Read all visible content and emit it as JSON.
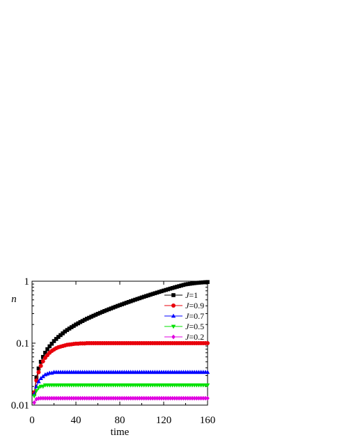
{
  "chart_data": {
    "type": "line",
    "xlabel": "time",
    "ylabel": "n",
    "xlim": [
      0,
      160
    ],
    "ylim": [
      0.01,
      1
    ],
    "yscale": "log",
    "xticks": [
      0,
      40,
      80,
      120,
      160
    ],
    "xtick_labels": [
      "0",
      "40",
      "80",
      "120",
      "160"
    ],
    "yticks": [
      0.01,
      0.1,
      1
    ],
    "ytick_labels": [
      "0.01",
      "0.1",
      "1"
    ],
    "legend_position": "top-right",
    "x": [
      2,
      4,
      6,
      8,
      10,
      12,
      14,
      16,
      18,
      20,
      22,
      24,
      26,
      28,
      30,
      32,
      34,
      36,
      38,
      40,
      42,
      44,
      46,
      48,
      50,
      52,
      54,
      56,
      58,
      60,
      62,
      64,
      66,
      68,
      70,
      72,
      74,
      76,
      78,
      80,
      82,
      84,
      86,
      88,
      90,
      92,
      94,
      96,
      98,
      100,
      102,
      104,
      106,
      108,
      110,
      112,
      114,
      116,
      118,
      120,
      122,
      124,
      126,
      128,
      130,
      132,
      134,
      136,
      138,
      140,
      142,
      144,
      146,
      148,
      150,
      152,
      154,
      156,
      158,
      160
    ],
    "series": [
      {
        "name": "J=1",
        "label_var": "J",
        "label_val": "=1",
        "color": "#000000",
        "marker": "square",
        "values": [
          0.016,
          0.028,
          0.039,
          0.05,
          0.06,
          0.07,
          0.08,
          0.089,
          0.098,
          0.108,
          0.117,
          0.126,
          0.135,
          0.144,
          0.154,
          0.163,
          0.172,
          0.181,
          0.19,
          0.2,
          0.209,
          0.219,
          0.228,
          0.238,
          0.248,
          0.257,
          0.267,
          0.277,
          0.287,
          0.298,
          0.308,
          0.319,
          0.33,
          0.341,
          0.352,
          0.363,
          0.375,
          0.387,
          0.399,
          0.411,
          0.423,
          0.436,
          0.449,
          0.462,
          0.475,
          0.489,
          0.503,
          0.517,
          0.531,
          0.546,
          0.561,
          0.576,
          0.591,
          0.607,
          0.623,
          0.639,
          0.655,
          0.672,
          0.689,
          0.706,
          0.723,
          0.741,
          0.759,
          0.777,
          0.795,
          0.813,
          0.832,
          0.851,
          0.87,
          0.889,
          0.9,
          0.91,
          0.92,
          0.93,
          0.938,
          0.946,
          0.952,
          0.958,
          0.964,
          0.97
        ]
      },
      {
        "name": "J=0.9",
        "label_var": "J",
        "label_val": "=0.9",
        "color": "#e8000b",
        "marker": "circle",
        "values": [
          0.016,
          0.025,
          0.034,
          0.043,
          0.051,
          0.058,
          0.064,
          0.07,
          0.075,
          0.079,
          0.083,
          0.086,
          0.088,
          0.09,
          0.092,
          0.094,
          0.095,
          0.096,
          0.097,
          0.098,
          0.098,
          0.099,
          0.099,
          0.099,
          0.1,
          0.1,
          0.1,
          0.1,
          0.1,
          0.1,
          0.1,
          0.1,
          0.1,
          0.1,
          0.1,
          0.1,
          0.1,
          0.1,
          0.1,
          0.1,
          0.1,
          0.1,
          0.1,
          0.1,
          0.1,
          0.1,
          0.1,
          0.1,
          0.1,
          0.1,
          0.1,
          0.1,
          0.1,
          0.1,
          0.1,
          0.1,
          0.1,
          0.1,
          0.1,
          0.1,
          0.1,
          0.1,
          0.1,
          0.1,
          0.1,
          0.1,
          0.1,
          0.1,
          0.1,
          0.1,
          0.1,
          0.1,
          0.1,
          0.1,
          0.1,
          0.1,
          0.1,
          0.1,
          0.1,
          0.1
        ]
      },
      {
        "name": "J=0.7",
        "label_var": "J",
        "label_val": "=0.7",
        "color": "#0000ff",
        "marker": "triangle-up",
        "values": [
          0.015,
          0.02,
          0.024,
          0.027,
          0.029,
          0.031,
          0.032,
          0.033,
          0.033,
          0.034,
          0.034,
          0.034,
          0.034,
          0.034,
          0.034,
          0.034,
          0.034,
          0.034,
          0.034,
          0.034,
          0.034,
          0.034,
          0.034,
          0.034,
          0.034,
          0.034,
          0.034,
          0.034,
          0.034,
          0.034,
          0.034,
          0.034,
          0.034,
          0.034,
          0.034,
          0.034,
          0.034,
          0.034,
          0.034,
          0.034,
          0.034,
          0.034,
          0.034,
          0.034,
          0.034,
          0.034,
          0.034,
          0.034,
          0.034,
          0.034,
          0.034,
          0.034,
          0.034,
          0.034,
          0.034,
          0.034,
          0.034,
          0.034,
          0.034,
          0.034,
          0.034,
          0.034,
          0.034,
          0.034,
          0.034,
          0.034,
          0.034,
          0.034,
          0.034,
          0.034,
          0.034,
          0.034,
          0.034,
          0.034,
          0.034,
          0.034,
          0.034,
          0.034,
          0.034,
          0.034
        ]
      },
      {
        "name": "J=0.5",
        "label_var": "J",
        "label_val": "=0.5",
        "color": "#00e000",
        "marker": "triangle-down",
        "values": [
          0.014,
          0.017,
          0.019,
          0.02,
          0.02,
          0.021,
          0.021,
          0.021,
          0.021,
          0.021,
          0.021,
          0.021,
          0.021,
          0.021,
          0.021,
          0.021,
          0.021,
          0.021,
          0.021,
          0.021,
          0.021,
          0.021,
          0.021,
          0.021,
          0.021,
          0.021,
          0.021,
          0.021,
          0.021,
          0.021,
          0.021,
          0.021,
          0.021,
          0.021,
          0.021,
          0.021,
          0.021,
          0.021,
          0.021,
          0.021,
          0.021,
          0.021,
          0.021,
          0.021,
          0.021,
          0.021,
          0.021,
          0.021,
          0.021,
          0.021,
          0.021,
          0.021,
          0.021,
          0.021,
          0.021,
          0.021,
          0.021,
          0.021,
          0.021,
          0.021,
          0.021,
          0.021,
          0.021,
          0.021,
          0.021,
          0.021,
          0.021,
          0.021,
          0.021,
          0.021,
          0.021,
          0.021,
          0.021,
          0.021,
          0.021,
          0.021,
          0.021,
          0.021,
          0.021,
          0.021
        ]
      },
      {
        "name": "J=0.2",
        "label_var": "J",
        "label_val": "=0.2",
        "color": "#e000e0",
        "marker": "diamond",
        "values": [
          0.011,
          0.0125,
          0.0128,
          0.0129,
          0.0129,
          0.0129,
          0.0129,
          0.0129,
          0.0129,
          0.0129,
          0.0129,
          0.0129,
          0.0129,
          0.0129,
          0.0129,
          0.0129,
          0.0129,
          0.0129,
          0.0129,
          0.0129,
          0.0129,
          0.0129,
          0.0129,
          0.0129,
          0.0129,
          0.0129,
          0.0129,
          0.0129,
          0.0129,
          0.0129,
          0.0129,
          0.0129,
          0.0129,
          0.0129,
          0.0129,
          0.0129,
          0.0129,
          0.0129,
          0.0129,
          0.0129,
          0.0129,
          0.0129,
          0.0129,
          0.0129,
          0.0129,
          0.0129,
          0.0129,
          0.0129,
          0.0129,
          0.0129,
          0.0129,
          0.0129,
          0.0129,
          0.0129,
          0.0129,
          0.0129,
          0.0129,
          0.0129,
          0.0129,
          0.0129,
          0.0129,
          0.0129,
          0.0129,
          0.0129,
          0.0129,
          0.0129,
          0.0129,
          0.0129,
          0.0129,
          0.0129,
          0.0129,
          0.0129,
          0.0129,
          0.0129,
          0.0129,
          0.0129,
          0.0129,
          0.0129,
          0.0129,
          0.0129
        ]
      }
    ]
  }
}
